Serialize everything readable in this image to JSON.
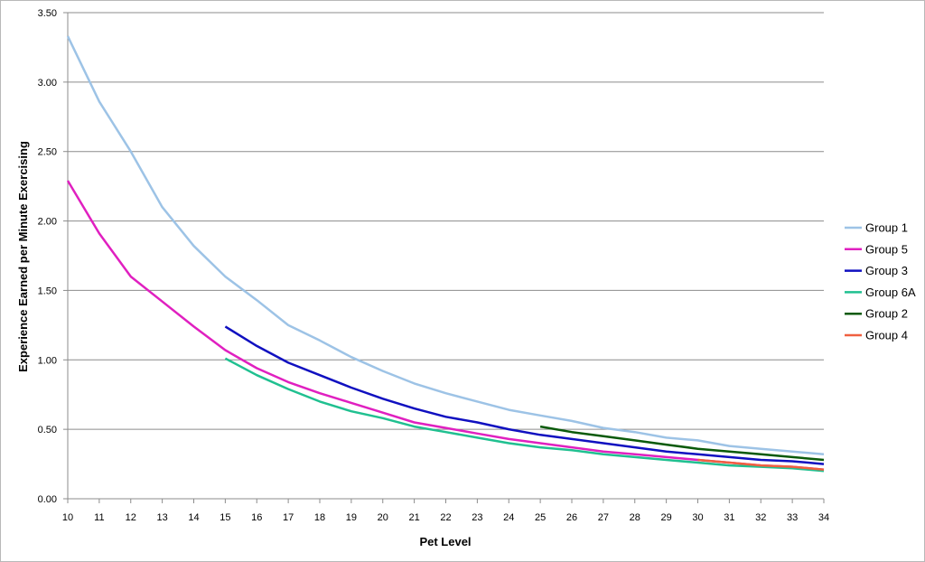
{
  "chart_data": {
    "type": "line",
    "xlabel": "Pet Level",
    "ylabel": "Experience Earned per Minute Exercising",
    "xlim": [
      10,
      34
    ],
    "ylim": [
      0,
      3.5
    ],
    "x_ticks": [
      "10",
      "11",
      "12",
      "13",
      "14",
      "15",
      "16",
      "17",
      "18",
      "19",
      "20",
      "21",
      "22",
      "23",
      "24",
      "25",
      "26",
      "27",
      "28",
      "29",
      "30",
      "31",
      "32",
      "33",
      "34"
    ],
    "y_ticks": [
      "0.00",
      "0.50",
      "1.00",
      "1.50",
      "2.00",
      "2.50",
      "3.00",
      "3.50"
    ],
    "grid": "horizontal",
    "legend_position": "right",
    "series": [
      {
        "name": "Group 1",
        "color": "#9dc3e6",
        "x": [
          10,
          11,
          12,
          13,
          14,
          15,
          16,
          17,
          18,
          19,
          20,
          21,
          22,
          23,
          24,
          25,
          26,
          27,
          28,
          29,
          30,
          31,
          32,
          33,
          34
        ],
        "values": [
          3.33,
          2.86,
          2.5,
          2.1,
          1.82,
          1.6,
          1.43,
          1.25,
          1.14,
          1.02,
          0.92,
          0.83,
          0.76,
          0.7,
          0.64,
          0.6,
          0.56,
          0.51,
          0.48,
          0.44,
          0.42,
          0.38,
          0.36,
          0.34,
          0.32
        ]
      },
      {
        "name": "Group 5",
        "color": "#e020c0",
        "x": [
          10,
          11,
          12,
          13,
          14,
          15,
          16,
          17,
          18,
          19,
          20,
          21,
          22,
          23,
          24,
          25,
          26,
          27,
          28,
          29,
          30,
          31,
          32,
          33,
          34
        ],
        "values": [
          2.29,
          1.91,
          1.6,
          1.42,
          1.24,
          1.07,
          0.94,
          0.84,
          0.76,
          0.69,
          0.62,
          0.55,
          0.51,
          0.47,
          0.43,
          0.4,
          0.37,
          0.34,
          0.32,
          0.3,
          0.28,
          0.26,
          0.24,
          0.23,
          0.21
        ]
      },
      {
        "name": "Group 3",
        "color": "#1010c0",
        "x": [
          15,
          16,
          17,
          18,
          19,
          20,
          21,
          22,
          23,
          24,
          25,
          26,
          27,
          28,
          29,
          30,
          31,
          32,
          33,
          34
        ],
        "values": [
          1.24,
          1.1,
          0.98,
          0.89,
          0.8,
          0.72,
          0.65,
          0.59,
          0.55,
          0.5,
          0.46,
          0.43,
          0.4,
          0.37,
          0.34,
          0.32,
          0.3,
          0.28,
          0.27,
          0.25
        ]
      },
      {
        "name": "Group 6A",
        "color": "#20c090",
        "x": [
          15,
          16,
          17,
          18,
          19,
          20,
          21,
          22,
          23,
          24,
          25,
          26,
          27,
          28,
          29,
          30,
          31,
          32,
          33,
          34
        ],
        "values": [
          1.01,
          0.89,
          0.79,
          0.7,
          0.63,
          0.58,
          0.52,
          0.48,
          0.44,
          0.4,
          0.37,
          0.35,
          0.32,
          0.3,
          0.28,
          0.26,
          0.24,
          0.23,
          0.22,
          0.2
        ]
      },
      {
        "name": "Group 2",
        "color": "#0a5a0a",
        "x": [
          25,
          26,
          27,
          28,
          29,
          30,
          31,
          32,
          33,
          34
        ],
        "values": [
          0.52,
          0.48,
          0.45,
          0.42,
          0.39,
          0.36,
          0.34,
          0.32,
          0.3,
          0.28
        ]
      },
      {
        "name": "Group 4",
        "color": "#f06040",
        "x": [
          30,
          31,
          32,
          33,
          34
        ],
        "values": [
          0.28,
          0.26,
          0.24,
          0.23,
          0.21
        ]
      }
    ]
  }
}
